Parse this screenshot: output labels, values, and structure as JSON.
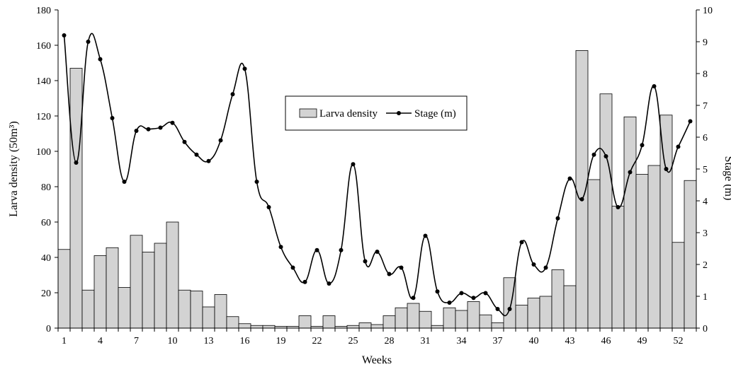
{
  "chart_data": {
    "type": "bar+line",
    "xlabel": "Weeks",
    "ylabel_left": "Larva density (50m³)",
    "ylabel_right": "Stage (m)",
    "x_tick_labels": [
      "1",
      "4",
      "7",
      "10",
      "13",
      "16",
      "19",
      "22",
      "25",
      "28",
      "31",
      "34",
      "37",
      "40",
      "43",
      "46",
      "49",
      "52"
    ],
    "weeks": [
      1,
      2,
      3,
      4,
      5,
      6,
      7,
      8,
      9,
      10,
      11,
      12,
      13,
      14,
      15,
      16,
      17,
      18,
      19,
      20,
      21,
      22,
      23,
      24,
      25,
      26,
      27,
      28,
      29,
      30,
      31,
      32,
      33,
      34,
      35,
      36,
      37,
      38,
      39,
      40,
      41,
      42,
      43,
      44,
      45,
      46,
      47,
      48,
      49,
      50,
      51,
      52,
      53
    ],
    "ylim_left": [
      0,
      180
    ],
    "yticks_left": [
      "0",
      "20",
      "40",
      "60",
      "80",
      "100",
      "120",
      "140",
      "160",
      "180"
    ],
    "ylim_right": [
      0,
      10
    ],
    "yticks_right": [
      "0",
      "1",
      "2",
      "3",
      "4",
      "5",
      "6",
      "7",
      "8",
      "9",
      "10"
    ],
    "legend_position": "top-center",
    "series": [
      {
        "name": "Larva density",
        "kind": "bar",
        "axis": "left",
        "color": "#d3d3d3",
        "values": [
          44.5,
          147,
          21.5,
          41,
          45.5,
          23,
          52.5,
          43,
          48,
          60,
          21.5,
          21,
          12,
          19,
          6.5,
          2.5,
          1.5,
          1.5,
          1,
          1,
          7,
          1,
          7,
          1,
          1.5,
          3,
          2,
          7,
          11.5,
          14,
          9.5,
          1.5,
          11.5,
          10,
          15,
          7.5,
          3,
          28.5,
          13,
          17,
          18,
          33,
          24,
          157,
          84,
          132.5,
          69,
          119.5,
          87,
          92,
          120.5,
          48.5,
          83.5
        ]
      },
      {
        "name": "Stage (m)",
        "kind": "line",
        "axis": "right",
        "color": "#000000",
        "values": [
          9.2,
          5.2,
          9.0,
          8.45,
          6.6,
          4.6,
          6.2,
          6.25,
          6.3,
          6.45,
          5.85,
          5.45,
          5.25,
          5.9,
          7.35,
          8.15,
          4.6,
          3.8,
          2.55,
          1.9,
          1.45,
          2.45,
          1.4,
          2.45,
          5.15,
          2.1,
          2.4,
          1.7,
          1.9,
          0.95,
          2.9,
          1.15,
          0.8,
          1.1,
          0.95,
          1.1,
          0.6,
          0.6,
          2.7,
          2.0,
          1.9,
          3.45,
          4.7,
          4.05,
          5.45,
          5.4,
          3.8,
          4.9,
          5.75,
          7.6,
          5.0,
          5.7,
          6.5
        ]
      }
    ]
  }
}
